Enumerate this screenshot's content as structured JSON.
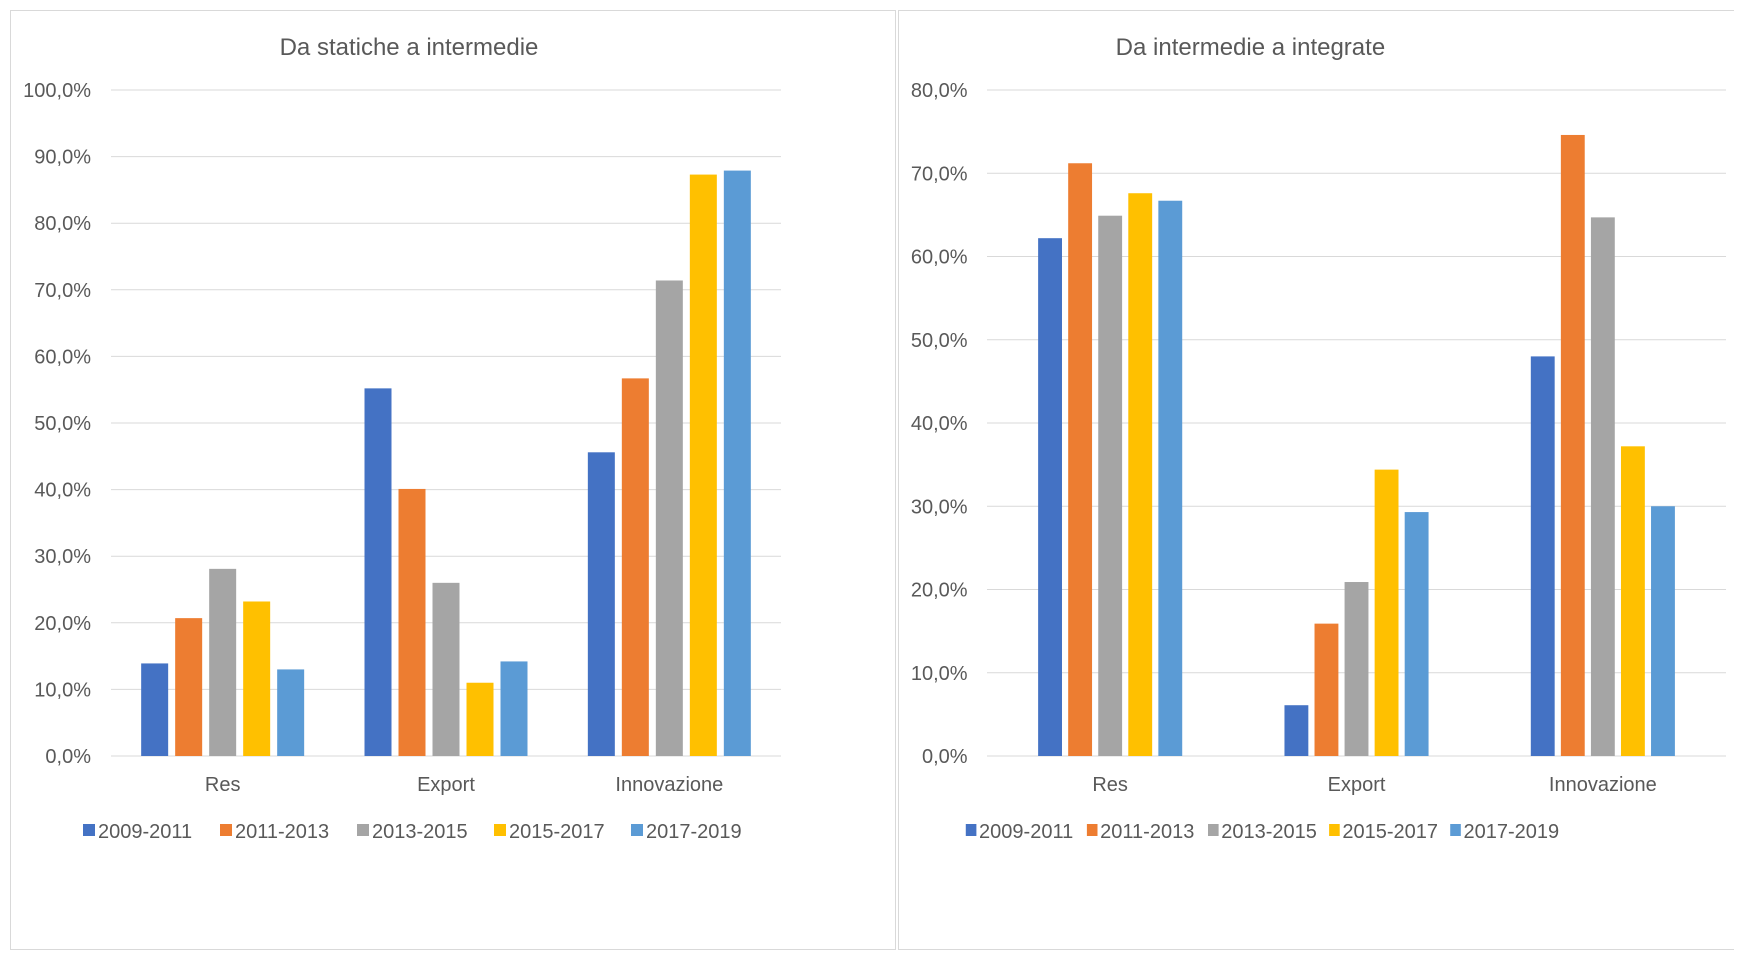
{
  "colors": [
    "#4472C4",
    "#ED7D31",
    "#A5A5A5",
    "#FFC000",
    "#5B9BD5"
  ],
  "chart_data": [
    {
      "type": "bar",
      "title": "Da statiche a intermedie",
      "categories": [
        "Res",
        "Export",
        "Innovazione"
      ],
      "ylim": [
        0,
        100
      ],
      "yticks": [
        "0,0%",
        "10,0%",
        "20,0%",
        "30,0%",
        "40,0%",
        "50,0%",
        "60,0%",
        "70,0%",
        "80,0%",
        "90,0%",
        "100,0%"
      ],
      "grid": true,
      "legend": "bottom",
      "series": [
        {
          "name": "2009-2011",
          "values": [
            13.9,
            55.2,
            45.6
          ]
        },
        {
          "name": "2011-2013",
          "values": [
            20.7,
            40.1,
            56.7
          ]
        },
        {
          "name": "2013-2015",
          "values": [
            28.1,
            26.0,
            71.4
          ]
        },
        {
          "name": "2015-2017",
          "values": [
            23.2,
            11.0,
            87.3
          ]
        },
        {
          "name": "2017-2019",
          "values": [
            13.0,
            14.2,
            87.9
          ]
        }
      ]
    },
    {
      "type": "bar",
      "title": "Da intermedie a integrate",
      "categories": [
        "Res",
        "Export",
        "Innovazione"
      ],
      "ylim": [
        0,
        80
      ],
      "yticks": [
        "0,0%",
        "10,0%",
        "20,0%",
        "30,0%",
        "40,0%",
        "50,0%",
        "60,0%",
        "70,0%",
        "80,0%"
      ],
      "grid": true,
      "legend": "bottom",
      "series": [
        {
          "name": "2009-2011",
          "values": [
            62.2,
            6.1,
            48.0
          ]
        },
        {
          "name": "2011-2013",
          "values": [
            71.2,
            15.9,
            74.6
          ]
        },
        {
          "name": "2013-2015",
          "values": [
            64.9,
            20.9,
            64.7
          ]
        },
        {
          "name": "2015-2017",
          "values": [
            67.6,
            34.4,
            37.2
          ]
        },
        {
          "name": "2017-2019",
          "values": [
            66.7,
            29.3,
            30.0
          ]
        }
      ]
    }
  ]
}
